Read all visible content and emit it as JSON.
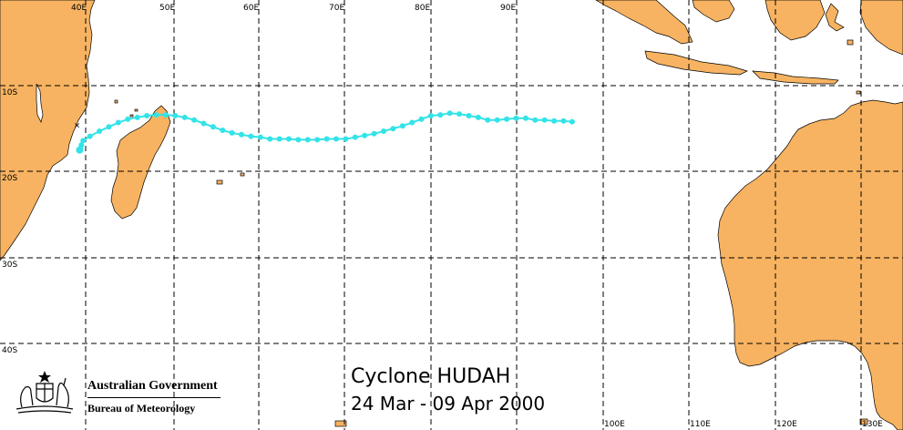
{
  "map": {
    "title": "Cyclone HUDAH",
    "date_range": "24 Mar - 09 Apr 2000",
    "colors": {
      "land": "#f7b361",
      "ocean": "#ffffff",
      "track": "#33e3e8",
      "grid": "#000000"
    },
    "longitude_labels_top": [
      "40E",
      "50E",
      "60E",
      "70E",
      "80E",
      "90E"
    ],
    "longitude_labels_bottom": [
      "100E",
      "110E",
      "120E",
      "130E"
    ],
    "latitude_labels": [
      "10S",
      "20S",
      "30S",
      "40S"
    ],
    "genesis_marker": "×",
    "track_positions": [
      {
        "lon": 96.5,
        "lat": -14.2
      },
      {
        "lon": 95.5,
        "lat": -14.1
      },
      {
        "lon": 94.4,
        "lat": -14.1
      },
      {
        "lon": 93.3,
        "lat": -14.0
      },
      {
        "lon": 92.2,
        "lat": -14.0
      },
      {
        "lon": 91.1,
        "lat": -13.8
      },
      {
        "lon": 90.0,
        "lat": -13.8
      },
      {
        "lon": 88.9,
        "lat": -13.9
      },
      {
        "lon": 87.8,
        "lat": -14.0
      },
      {
        "lon": 86.7,
        "lat": -14.0
      },
      {
        "lon": 85.6,
        "lat": -13.7
      },
      {
        "lon": 84.5,
        "lat": -13.5
      },
      {
        "lon": 83.4,
        "lat": -13.3
      },
      {
        "lon": 82.3,
        "lat": -13.2
      },
      {
        "lon": 81.2,
        "lat": -13.4
      },
      {
        "lon": 80.1,
        "lat": -13.5
      },
      {
        "lon": 79.0,
        "lat": -13.9
      },
      {
        "lon": 77.9,
        "lat": -14.3
      },
      {
        "lon": 76.8,
        "lat": -14.7
      },
      {
        "lon": 75.7,
        "lat": -15.0
      },
      {
        "lon": 74.6,
        "lat": -15.3
      },
      {
        "lon": 73.5,
        "lat": -15.6
      },
      {
        "lon": 72.4,
        "lat": -15.8
      },
      {
        "lon": 71.3,
        "lat": -16.0
      },
      {
        "lon": 70.2,
        "lat": -16.2
      },
      {
        "lon": 69.1,
        "lat": -16.2
      },
      {
        "lon": 68.0,
        "lat": -16.2
      },
      {
        "lon": 66.9,
        "lat": -16.3
      },
      {
        "lon": 65.8,
        "lat": -16.3
      },
      {
        "lon": 64.7,
        "lat": -16.3
      },
      {
        "lon": 63.6,
        "lat": -16.2
      },
      {
        "lon": 62.5,
        "lat": -16.2
      },
      {
        "lon": 61.4,
        "lat": -16.2
      },
      {
        "lon": 60.3,
        "lat": -16.0
      },
      {
        "lon": 59.2,
        "lat": -15.9
      },
      {
        "lon": 58.1,
        "lat": -15.7
      },
      {
        "lon": 57.0,
        "lat": -15.5
      },
      {
        "lon": 55.9,
        "lat": -15.2
      },
      {
        "lon": 54.8,
        "lat": -14.8
      },
      {
        "lon": 53.7,
        "lat": -14.4
      },
      {
        "lon": 52.6,
        "lat": -14.0
      },
      {
        "lon": 51.5,
        "lat": -13.7
      },
      {
        "lon": 50.4,
        "lat": -13.5
      },
      {
        "lon": 49.3,
        "lat": -13.4
      },
      {
        "lon": 48.2,
        "lat": -13.4
      },
      {
        "lon": 47.1,
        "lat": -13.5
      },
      {
        "lon": 46.0,
        "lat": -13.7
      },
      {
        "lon": 44.9,
        "lat": -13.9
      },
      {
        "lon": 43.8,
        "lat": -14.3
      },
      {
        "lon": 42.7,
        "lat": -14.8
      },
      {
        "lon": 41.6,
        "lat": -15.3
      },
      {
        "lon": 40.5,
        "lat": -15.9
      },
      {
        "lon": 39.7,
        "lat": -16.4
      },
      {
        "lon": 39.5,
        "lat": -16.9
      },
      {
        "lon": 39.4,
        "lat": -17.3
      },
      {
        "lon": 39.3,
        "lat": -17.5
      }
    ],
    "genesis_position": {
      "lon": 39.0,
      "lat": -14.4
    }
  },
  "logo": {
    "line1": "Australian Government",
    "line2": "Bureau of Meteorology"
  }
}
